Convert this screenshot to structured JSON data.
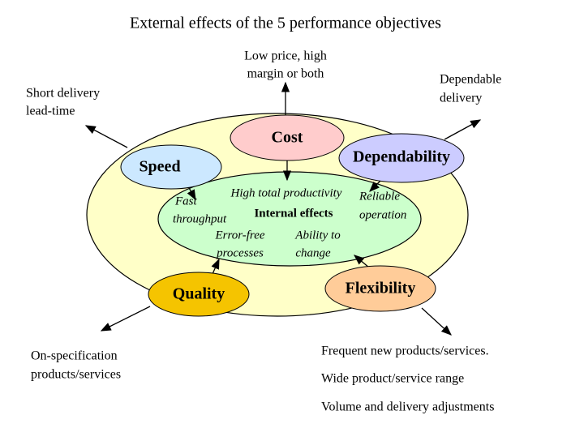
{
  "title": "External effects of the 5 performance objectives",
  "internal": {
    "label": "Internal effects",
    "effects": [
      [
        "High total productivity"
      ],
      [
        "Fast",
        "throughput"
      ],
      [
        "Reliable",
        "operation"
      ],
      [
        "Error-free",
        "processes"
      ],
      [
        "Ability to",
        "change"
      ]
    ]
  },
  "nodes": [
    {
      "label": "Cost",
      "external": [
        "Low price, high",
        "margin or both"
      ]
    },
    {
      "label": "Speed",
      "external": [
        "Short delivery",
        "lead-time"
      ]
    },
    {
      "label": "Dependability",
      "external": [
        "Dependable",
        "delivery"
      ]
    },
    {
      "label": "Quality",
      "external": [
        "On-specification",
        "products/services"
      ]
    },
    {
      "label": "Flexibility",
      "external": [
        "Frequent new products/services.",
        "Wide product/service range",
        "Volume and delivery adjustments"
      ]
    }
  ]
}
